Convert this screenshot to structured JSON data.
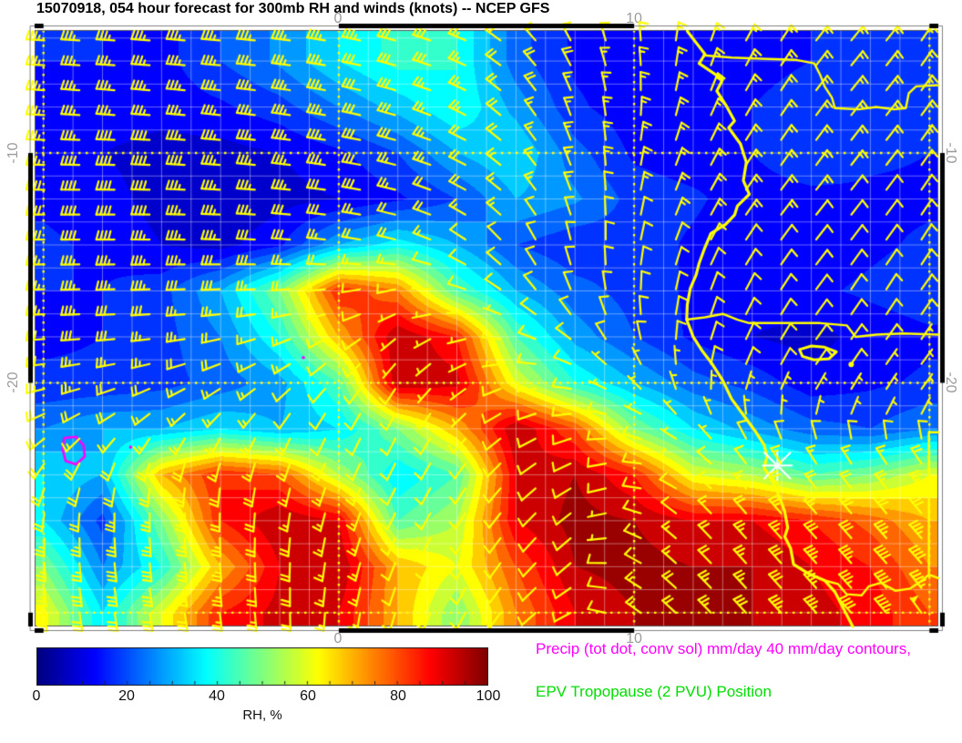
{
  "title": "15070918, 054 hour forecast for 300mb RH and winds (knots) -- NCEP GFS",
  "axes": {
    "lon_ticks": [
      {
        "label": "0",
        "lon": 0
      },
      {
        "label": "10",
        "lon": 10
      }
    ],
    "lat_ticks": [
      {
        "label": "-10",
        "lat": -10
      },
      {
        "label": "-20",
        "lat": -20
      }
    ]
  },
  "legend": {
    "precip_label": "Precip (tot dot, conv sol) mm/day 40 mm/day contours,",
    "precip_color": "#ff00ff",
    "epv_label": "EPV Tropopause (2 PVU) Position",
    "epv_color": "#00dd00"
  },
  "colorbar": {
    "label": "RH, %",
    "min": 0,
    "max": 100,
    "ticks": [
      "0",
      "20",
      "40",
      "60",
      "80",
      "100"
    ],
    "tick_values": [
      0,
      20,
      40,
      60,
      80,
      100
    ],
    "minor_tick_step": 5,
    "colormap": "jet"
  },
  "chart_data": {
    "type": "heatmap",
    "field": "300mb relative humidity, %",
    "overlay": "wind barbs, knots",
    "model": "NCEP GFS",
    "forecast_hour": "054",
    "run": "15070918",
    "lon_range": [
      -10.3,
      20.3
    ],
    "lat_range": [
      -30.6,
      -4.65
    ],
    "contour_interval": 5,
    "graticule": {
      "minor_deg": 1,
      "major_deg": 10,
      "major_lons": [
        -10,
        0,
        10,
        20
      ],
      "major_lats": [
        -10,
        -20,
        -30
      ]
    },
    "frame": {
      "black_lon_segments": [
        [
          -10.3,
          -10
        ],
        [
          0,
          10
        ],
        [
          20,
          20.3
        ]
      ],
      "black_lat_segments": [
        [
          -20,
          -10
        ],
        [
          -30.6,
          -30
        ]
      ]
    },
    "rh": {
      "lons": [
        -10,
        -8,
        -6,
        -4,
        -2,
        0,
        2,
        4,
        6,
        8,
        10,
        12,
        14,
        16,
        18,
        20
      ],
      "lats": [
        -6,
        -8,
        -10,
        -12,
        -14,
        -16,
        -18,
        -20,
        -22,
        -24,
        -26,
        -28,
        -30
      ],
      "values": [
        [
          15,
          15,
          13,
          20,
          26,
          35,
          42,
          40,
          22,
          14,
          12,
          12,
          13,
          15,
          16,
          18
        ],
        [
          14,
          13,
          12,
          14,
          18,
          25,
          32,
          40,
          28,
          16,
          12,
          13,
          15,
          18,
          16,
          15
        ],
        [
          12,
          10,
          8,
          8,
          10,
          14,
          20,
          30,
          35,
          22,
          14,
          12,
          15,
          20,
          16,
          15
        ],
        [
          14,
          12,
          8,
          6,
          8,
          10,
          14,
          20,
          30,
          26,
          18,
          16,
          12,
          13,
          14,
          14
        ],
        [
          16,
          14,
          10,
          8,
          14,
          30,
          38,
          30,
          20,
          16,
          18,
          14,
          11,
          12,
          14,
          16
        ],
        [
          15,
          15,
          18,
          30,
          50,
          85,
          75,
          45,
          30,
          22,
          18,
          14,
          12,
          14,
          16,
          18
        ],
        [
          14,
          15,
          18,
          25,
          40,
          70,
          95,
          85,
          45,
          28,
          20,
          14,
          10,
          8,
          12,
          14
        ],
        [
          16,
          16,
          18,
          22,
          28,
          45,
          95,
          92,
          60,
          40,
          30,
          22,
          18,
          12,
          14,
          16
        ],
        [
          25,
          30,
          30,
          35,
          30,
          35,
          50,
          70,
          95,
          80,
          50,
          35,
          28,
          22,
          20,
          25
        ],
        [
          35,
          30,
          70,
          85,
          80,
          55,
          35,
          45,
          90,
          95,
          85,
          60,
          55,
          45,
          50,
          60
        ],
        [
          35,
          18,
          50,
          85,
          95,
          90,
          45,
          55,
          90,
          97,
          95,
          90,
          90,
          85,
          78,
          70
        ],
        [
          50,
          25,
          40,
          70,
          90,
          95,
          70,
          60,
          80,
          95,
          97,
          95,
          95,
          90,
          85,
          75
        ],
        [
          62,
          35,
          60,
          85,
          92,
          90,
          70,
          50,
          75,
          90,
          95,
          97,
          95,
          92,
          88,
          80
        ]
      ]
    },
    "wind_knots": {
      "lons": [
        -10,
        -8,
        -6,
        -4,
        -2,
        0,
        2,
        4,
        6,
        8,
        10,
        12,
        14,
        16,
        18,
        20
      ],
      "lats": [
        -6,
        -8,
        -10,
        -12,
        -14,
        -16,
        -18,
        -20,
        -22,
        -24,
        -26,
        -28,
        -30
      ],
      "u": [
        [
          35,
          35,
          36,
          36,
          35,
          33,
          30,
          26,
          15,
          8,
          2,
          -4,
          -8,
          -10,
          -10,
          -8
        ],
        [
          36,
          36,
          37,
          36,
          35,
          32,
          28,
          22,
          12,
          5,
          0,
          -5,
          -8,
          -9,
          -9,
          -8
        ],
        [
          37,
          38,
          38,
          37,
          35,
          32,
          27,
          20,
          12,
          5,
          -2,
          -6,
          -8,
          -8,
          -8,
          -7
        ],
        [
          38,
          38,
          38,
          36,
          34,
          30,
          24,
          16,
          10,
          4,
          -2,
          -6,
          -8,
          -8,
          -7,
          -6
        ],
        [
          38,
          38,
          37,
          34,
          30,
          24,
          16,
          10,
          6,
          2,
          -2,
          -5,
          -7,
          -7,
          -6,
          -5
        ],
        [
          36,
          35,
          33,
          28,
          20,
          12,
          8,
          8,
          6,
          3,
          0,
          -3,
          -5,
          -6,
          -5,
          -5
        ],
        [
          32,
          30,
          26,
          20,
          14,
          8,
          5,
          6,
          8,
          6,
          2,
          -2,
          -4,
          -5,
          -5,
          -4
        ],
        [
          25,
          22,
          18,
          14,
          10,
          6,
          4,
          5,
          8,
          8,
          5,
          0,
          -3,
          -4,
          -4,
          -4
        ],
        [
          16,
          13,
          10,
          8,
          6,
          5,
          4,
          5,
          7,
          8,
          8,
          5,
          2,
          0,
          -2,
          -2
        ],
        [
          8,
          5,
          3,
          3,
          4,
          5,
          5,
          5,
          6,
          8,
          8,
          8,
          8,
          10,
          12,
          14
        ],
        [
          2,
          0,
          -1,
          0,
          2,
          4,
          5,
          5,
          5,
          6,
          8,
          10,
          14,
          18,
          20,
          22
        ],
        [
          -2,
          -3,
          -3,
          -2,
          0,
          3,
          4,
          4,
          5,
          6,
          10,
          14,
          18,
          22,
          25,
          27
        ],
        [
          -4,
          -5,
          -5,
          -3,
          -1,
          2,
          3,
          4,
          5,
          8,
          12,
          16,
          20,
          24,
          27,
          30
        ]
      ],
      "v": [
        [
          -2,
          -2,
          -3,
          -3,
          -4,
          -6,
          -8,
          -10,
          -14,
          -16,
          -16,
          -15,
          -14,
          -13,
          -12,
          -12
        ],
        [
          -2,
          -3,
          -3,
          -4,
          -5,
          -6,
          -8,
          -10,
          -13,
          -15,
          -15,
          -14,
          -13,
          -12,
          -11,
          -11
        ],
        [
          -1,
          -1,
          -2,
          -3,
          -4,
          -5,
          -7,
          -9,
          -12,
          -14,
          -14,
          -13,
          -12,
          -11,
          -10,
          -10
        ],
        [
          0,
          0,
          -1,
          -2,
          -3,
          -4,
          -6,
          -8,
          -10,
          -12,
          -12,
          -12,
          -11,
          -10,
          -9,
          -9
        ],
        [
          0,
          0,
          0,
          -1,
          -2,
          -3,
          -4,
          -6,
          -8,
          -10,
          -11,
          -11,
          -10,
          -9,
          -8,
          -8
        ],
        [
          1,
          1,
          1,
          1,
          1,
          2,
          2,
          -2,
          -5,
          -8,
          -9,
          -10,
          -9,
          -8,
          -8,
          -7
        ],
        [
          2,
          2,
          3,
          4,
          5,
          5,
          4,
          2,
          -2,
          -5,
          -8,
          -8,
          -8,
          -7,
          -7,
          -6
        ],
        [
          5,
          6,
          7,
          8,
          8,
          7,
          6,
          4,
          2,
          -2,
          -5,
          -7,
          -7,
          -6,
          -6,
          -5
        ],
        [
          10,
          11,
          12,
          12,
          11,
          10,
          8,
          6,
          4,
          2,
          -2,
          -5,
          -6,
          -6,
          -5,
          -5
        ],
        [
          16,
          18,
          19,
          18,
          15,
          12,
          10,
          8,
          6,
          4,
          0,
          -5,
          -10,
          -14,
          -16,
          -18
        ],
        [
          22,
          24,
          25,
          23,
          18,
          14,
          10,
          8,
          6,
          5,
          -2,
          -10,
          -16,
          -20,
          -24,
          -26
        ],
        [
          26,
          28,
          28,
          25,
          20,
          15,
          10,
          8,
          6,
          5,
          -5,
          -14,
          -20,
          -25,
          -28,
          -30
        ],
        [
          28,
          30,
          30,
          26,
          20,
          15,
          10,
          8,
          6,
          4,
          -8,
          -16,
          -22,
          -27,
          -30,
          -42
        ]
      ],
      "barb_spacing_deg": [
        1.188,
        1.083
      ]
    },
    "map_features": {
      "color": "#ffff00",
      "coastline": [
        [
          11.8,
          -4.7
        ],
        [
          12.1,
          -5.2
        ],
        [
          12.4,
          -5.7
        ],
        [
          12.2,
          -6.1
        ],
        [
          13.0,
          -6.8
        ],
        [
          12.8,
          -7.3
        ],
        [
          13.1,
          -7.9
        ],
        [
          13.4,
          -8.6
        ],
        [
          13.2,
          -8.9
        ],
        [
          13.6,
          -9.6
        ],
        [
          13.8,
          -10.4
        ],
        [
          13.7,
          -11.2
        ],
        [
          13.9,
          -11.8
        ],
        [
          13.5,
          -12.3
        ],
        [
          13.4,
          -12.7
        ],
        [
          13.1,
          -13.1
        ],
        [
          12.6,
          -13.5
        ],
        [
          12.4,
          -14.1
        ],
        [
          12.2,
          -14.8
        ],
        [
          12.1,
          -15.3
        ],
        [
          11.9,
          -15.9
        ],
        [
          11.8,
          -16.6
        ],
        [
          11.78,
          -17.25
        ],
        [
          12.0,
          -18.0
        ],
        [
          12.3,
          -18.6
        ],
        [
          12.6,
          -19.1
        ],
        [
          13.0,
          -19.9
        ],
        [
          13.3,
          -20.7
        ],
        [
          13.7,
          -21.4
        ],
        [
          14.1,
          -22.1
        ],
        [
          14.4,
          -22.7
        ],
        [
          14.5,
          -23.2
        ],
        [
          14.4,
          -23.7
        ],
        [
          14.7,
          -24.3
        ],
        [
          14.9,
          -24.9
        ],
        [
          15.1,
          -25.6
        ],
        [
          15.2,
          -26.3
        ],
        [
          15.1,
          -26.7
        ],
        [
          15.3,
          -27.2
        ],
        [
          15.4,
          -27.9
        ],
        [
          15.9,
          -28.3
        ],
        [
          16.45,
          -28.6
        ],
        [
          16.8,
          -29.1
        ],
        [
          17.0,
          -29.6
        ],
        [
          17.2,
          -30.1
        ],
        [
          17.4,
          -30.6
        ]
      ],
      "borders": [
        [
          [
            12.35,
            -5.75
          ],
          [
            13.3,
            -5.85
          ],
          [
            14.3,
            -5.9
          ],
          [
            15.5,
            -5.95
          ],
          [
            16.1,
            -6.1
          ],
          [
            16.3,
            -6.6
          ],
          [
            16.45,
            -7.1
          ],
          [
            16.7,
            -7.6
          ],
          [
            16.8,
            -8.05
          ],
          [
            17.6,
            -8.1
          ],
          [
            18.2,
            -8.0
          ],
          [
            18.8,
            -8.1
          ],
          [
            19.2,
            -8.05
          ],
          [
            19.3,
            -7.4
          ],
          [
            19.55,
            -7.1
          ],
          [
            20.3,
            -7.05
          ]
        ],
        [
          [
            11.78,
            -17.25
          ],
          [
            12.4,
            -17.15
          ],
          [
            13.0,
            -17.0
          ],
          [
            13.5,
            -17.25
          ],
          [
            13.9,
            -17.4
          ],
          [
            15.1,
            -17.4
          ],
          [
            16.3,
            -17.4
          ],
          [
            17.2,
            -17.5
          ],
          [
            17.5,
            -18.0
          ],
          [
            18.2,
            -17.9
          ],
          [
            19.1,
            -17.85
          ],
          [
            20.3,
            -17.9
          ]
        ],
        [
          [
            20.3,
            -22.15
          ],
          [
            19.98,
            -22.15
          ],
          [
            19.98,
            -28.35
          ],
          [
            20.3,
            -28.5
          ]
        ],
        [
          [
            16.45,
            -28.6
          ],
          [
            16.9,
            -28.75
          ],
          [
            17.2,
            -29.2
          ],
          [
            17.7,
            -29.25
          ],
          [
            17.95,
            -28.85
          ],
          [
            18.35,
            -28.7
          ],
          [
            18.85,
            -29.05
          ],
          [
            19.35,
            -28.95
          ],
          [
            19.75,
            -28.6
          ],
          [
            19.98,
            -28.35
          ]
        ]
      ],
      "lakes": [
        [
          [
            15.6,
            -18.55
          ],
          [
            16.0,
            -18.4
          ],
          [
            16.45,
            -18.45
          ],
          [
            16.85,
            -18.65
          ],
          [
            16.6,
            -18.95
          ],
          [
            16.1,
            -19.0
          ],
          [
            15.7,
            -18.85
          ],
          [
            15.6,
            -18.55
          ]
        ]
      ],
      "lake_dots": [
        [
          17.35,
          -19.2
        ]
      ]
    },
    "overlays": {
      "precip_contour_40mm": {
        "color": "#ff00ff",
        "points": [
          [
            -9.3,
            -22.4
          ],
          [
            -8.9,
            -22.35
          ],
          [
            -8.65,
            -22.7
          ],
          [
            -8.6,
            -23.2
          ],
          [
            -8.9,
            -23.55
          ],
          [
            -9.25,
            -23.4
          ],
          [
            -9.35,
            -22.9
          ],
          [
            -9.3,
            -22.4
          ]
        ]
      },
      "precip_dots": [
        [
          -7.05,
          -22.8
        ],
        [
          -1.2,
          -18.9
        ]
      ],
      "station_marker": {
        "lon": 14.85,
        "lat": -23.6,
        "symbol": "asterisk",
        "color": "#ffffff"
      }
    }
  }
}
